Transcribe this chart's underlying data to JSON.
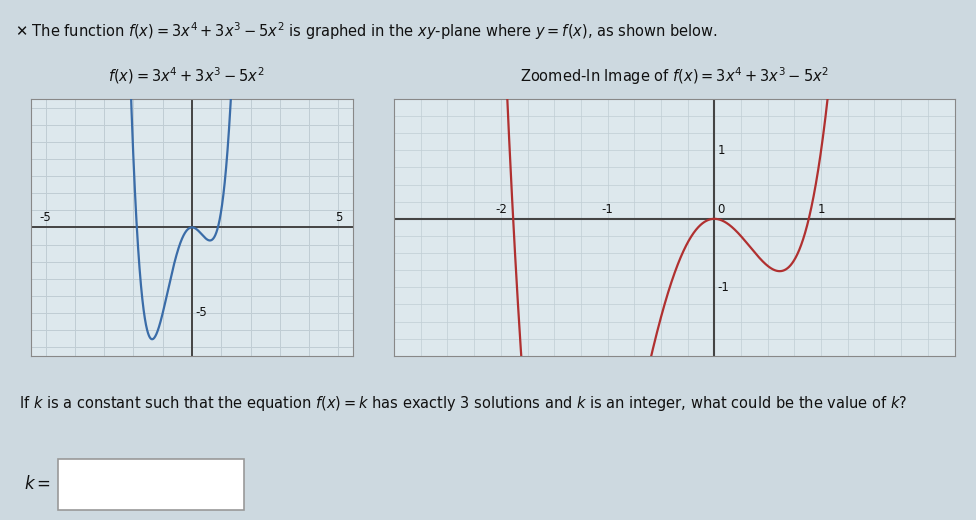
{
  "title_text": "✕ The function $f(x) = 3x^4 + 3x^3 - 5x^2$ is graphed in the $xy$-plane where $y = f(x)$, as shown below.",
  "left_title": "$f(x) = 3x^4 + 3x^3 - 5x^2$",
  "right_title": "Zoomed-In Image of $f(x) = 3x^4 + 3x^3 - 5x^2$",
  "question_text": "If $k$ is a constant such that the equation $f(x) = k$ has exactly 3 solutions and $k$ is an integer, what could be the value of $k$?",
  "answer_label": "$k =$",
  "left_xlim": [
    -5.5,
    5.5
  ],
  "left_ylim": [
    -7.5,
    7.5
  ],
  "right_xlim": [
    -2.6,
    1.6
  ],
  "right_ylim": [
    -1.6,
    1.6
  ],
  "right_xticks": [
    -2,
    -1,
    0,
    1
  ],
  "right_yticks": [
    -1,
    1
  ],
  "bg_color": "#cdd9e0",
  "plot_bg_color": "#dde8ed",
  "left_curve_color": "#3a6ca8",
  "right_curve_color": "#b03030",
  "grid_color": "#c0cdd4",
  "axis_color": "#444444",
  "text_color": "#111111"
}
